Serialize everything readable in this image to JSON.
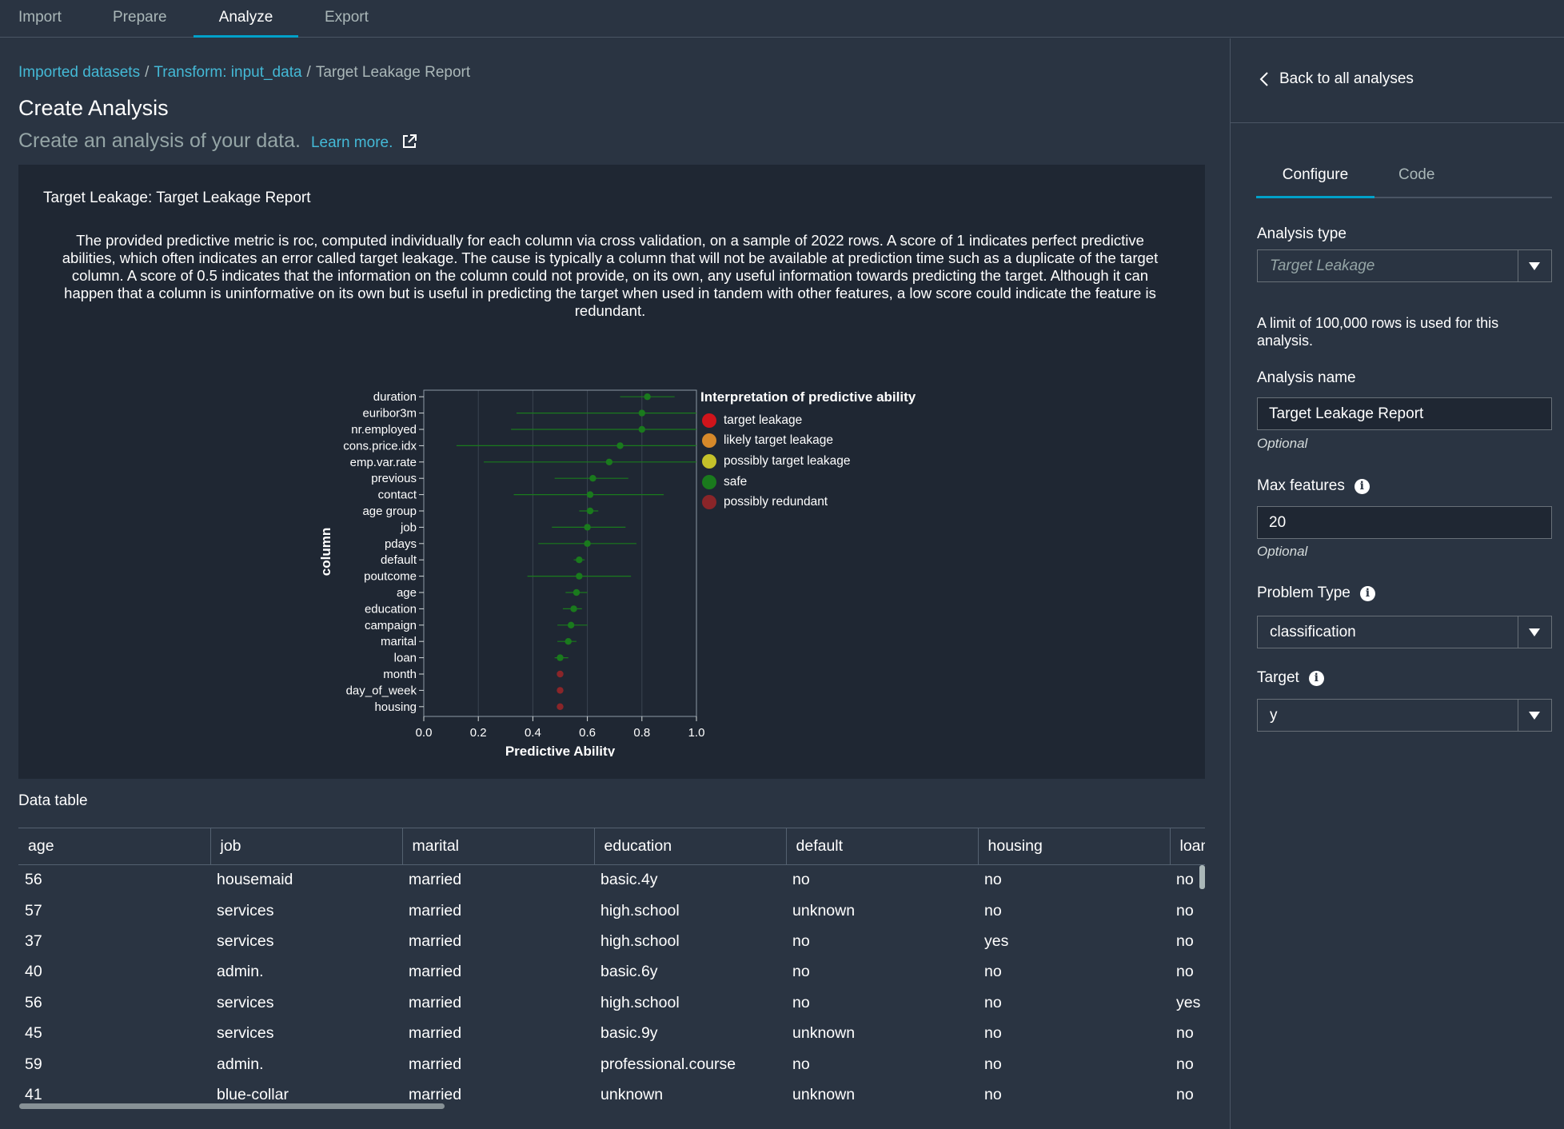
{
  "nav": {
    "tabs": [
      "Import",
      "Prepare",
      "Analyze",
      "Export"
    ],
    "active": "Analyze"
  },
  "breadcrumb": {
    "item1": "Imported datasets",
    "item2": "Transform: input_data",
    "current": "Target Leakage Report",
    "separator": "/"
  },
  "page": {
    "title": "Create Analysis",
    "subtitle": "Create an analysis of your data.",
    "learn_more": "Learn more."
  },
  "report": {
    "title": "Target Leakage: Target Leakage Report",
    "description": "The provided predictive metric is roc, computed individually for each column via cross validation, on a sample of 2022 rows. A score of 1 indicates perfect predictive abilities, which often indicates an error called target leakage. The cause is typically a column that will not be available at prediction time such as a duplicate of the target column. A score of 0.5 indicates that the information on the column could not provide, on its own, any useful information towards predicting the target. Although it can happen that a column is uninformative on its own but is useful in predicting the target when used in tandem with other features, a low score could indicate the feature is redundant."
  },
  "chart_data": {
    "type": "scatter",
    "xlabel": "Predictive Ability",
    "ylabel": "column",
    "xlim": [
      0,
      1
    ],
    "x_ticks": [
      "0.0",
      "0.2",
      "0.4",
      "0.6",
      "0.8",
      "1.0"
    ],
    "grid": true,
    "legend_title": "Interpretation of predictive ability",
    "legend_position": "right",
    "legend": [
      {
        "label": "target leakage",
        "color": "#d0141b"
      },
      {
        "label": "likely target leakage",
        "color": "#d6892a"
      },
      {
        "label": "possibly target leakage",
        "color": "#c4c12a"
      },
      {
        "label": "safe",
        "color": "#1a7a1d"
      },
      {
        "label": "possibly redundant",
        "color": "#8a2529"
      }
    ],
    "points": [
      {
        "column": "duration",
        "value": 0.82,
        "low": 0.72,
        "high": 0.92,
        "category": "safe"
      },
      {
        "column": "euribor3m",
        "value": 0.8,
        "low": 0.34,
        "high": 1.0,
        "category": "safe"
      },
      {
        "column": "nr.employed",
        "value": 0.8,
        "low": 0.32,
        "high": 1.0,
        "category": "safe"
      },
      {
        "column": "cons.price.idx",
        "value": 0.72,
        "low": 0.12,
        "high": 1.0,
        "category": "safe"
      },
      {
        "column": "emp.var.rate",
        "value": 0.68,
        "low": 0.22,
        "high": 1.0,
        "category": "safe"
      },
      {
        "column": "previous",
        "value": 0.62,
        "low": 0.48,
        "high": 0.75,
        "category": "safe"
      },
      {
        "column": "contact",
        "value": 0.61,
        "low": 0.33,
        "high": 0.88,
        "category": "safe"
      },
      {
        "column": "age group",
        "value": 0.61,
        "low": 0.57,
        "high": 0.64,
        "category": "safe"
      },
      {
        "column": "job",
        "value": 0.6,
        "low": 0.47,
        "high": 0.74,
        "category": "safe"
      },
      {
        "column": "pdays",
        "value": 0.6,
        "low": 0.42,
        "high": 0.78,
        "category": "safe"
      },
      {
        "column": "default",
        "value": 0.57,
        "low": 0.55,
        "high": 0.59,
        "category": "safe"
      },
      {
        "column": "poutcome",
        "value": 0.57,
        "low": 0.38,
        "high": 0.76,
        "category": "safe"
      },
      {
        "column": "age",
        "value": 0.56,
        "low": 0.52,
        "high": 0.6,
        "category": "safe"
      },
      {
        "column": "education",
        "value": 0.55,
        "low": 0.51,
        "high": 0.58,
        "category": "safe"
      },
      {
        "column": "campaign",
        "value": 0.54,
        "low": 0.49,
        "high": 0.6,
        "category": "safe"
      },
      {
        "column": "marital",
        "value": 0.53,
        "low": 0.49,
        "high": 0.56,
        "category": "safe"
      },
      {
        "column": "loan",
        "value": 0.5,
        "low": 0.48,
        "high": 0.53,
        "category": "safe"
      },
      {
        "column": "month",
        "value": 0.5,
        "low": 0.5,
        "high": 0.5,
        "category": "possibly redundant"
      },
      {
        "column": "day_of_week",
        "value": 0.5,
        "low": 0.5,
        "high": 0.5,
        "category": "possibly redundant"
      },
      {
        "column": "housing",
        "value": 0.5,
        "low": 0.5,
        "high": 0.5,
        "category": "possibly redundant"
      }
    ]
  },
  "data_table": {
    "label": "Data table",
    "columns": [
      "age",
      "job",
      "marital",
      "education",
      "default",
      "housing",
      "loan"
    ],
    "rows": [
      [
        "56",
        "housemaid",
        "married",
        "basic.4y",
        "no",
        "no",
        "no"
      ],
      [
        "57",
        "services",
        "married",
        "high.school",
        "unknown",
        "no",
        "no"
      ],
      [
        "37",
        "services",
        "married",
        "high.school",
        "no",
        "yes",
        "no"
      ],
      [
        "40",
        "admin.",
        "married",
        "basic.6y",
        "no",
        "no",
        "no"
      ],
      [
        "56",
        "services",
        "married",
        "high.school",
        "no",
        "no",
        "yes"
      ],
      [
        "45",
        "services",
        "married",
        "basic.9y",
        "unknown",
        "no",
        "no"
      ],
      [
        "59",
        "admin.",
        "married",
        "professional.course",
        "no",
        "no",
        "no"
      ],
      [
        "41",
        "blue-collar",
        "married",
        "unknown",
        "unknown",
        "no",
        "no"
      ]
    ]
  },
  "side": {
    "back": "Back to all analyses",
    "tabs": [
      "Configure",
      "Code"
    ],
    "analysis_type_label": "Analysis type",
    "analysis_type_value": "Target Leakage",
    "row_limit_note": "A limit of 100,000 rows is used for this analysis.",
    "analysis_name_label": "Analysis name",
    "analysis_name_value": "Target Leakage Report",
    "optional": "Optional",
    "max_features_label": "Max features",
    "max_features_value": "20",
    "problem_type_label": "Problem Type",
    "problem_type_value": "classification",
    "target_label": "Target",
    "target_value": "y"
  }
}
